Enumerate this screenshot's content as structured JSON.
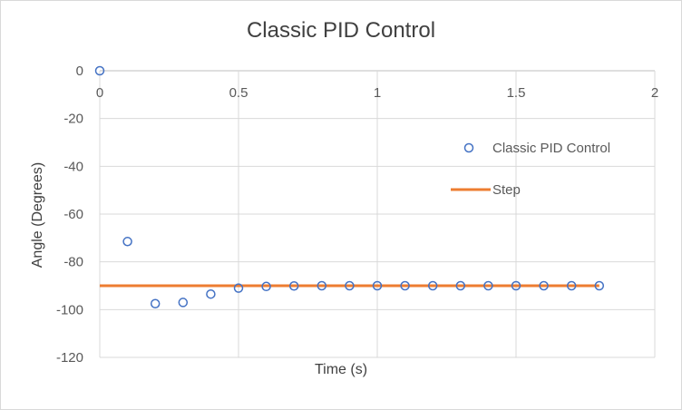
{
  "chart_data": {
    "type": "scatter",
    "title": "Classic PID Control",
    "xlabel": "Time (s)",
    "ylabel": "Angle (Degrees)",
    "xlim": [
      0,
      2
    ],
    "ylim": [
      -120,
      0
    ],
    "xticks": [
      0,
      0.5,
      1,
      1.5,
      2
    ],
    "xtick_labels": [
      "0",
      "0.5",
      "1",
      "1.5",
      "2"
    ],
    "yticks": [
      0,
      -20,
      -40,
      -60,
      -80,
      -100,
      -120
    ],
    "ytick_labels": [
      "0",
      "-20",
      "-40",
      "-60",
      "-80",
      "-100",
      "-120"
    ],
    "grid": true,
    "legend_position": "right",
    "series": [
      {
        "name": "Classic PID Control",
        "kind": "markers",
        "color": "#4472c4",
        "x": [
          0,
          0.1,
          0.2,
          0.3,
          0.4,
          0.5,
          0.6,
          0.7,
          0.8,
          0.9,
          1.0,
          1.1,
          1.2,
          1.3,
          1.4,
          1.5,
          1.6,
          1.7,
          1.8
        ],
        "y": [
          0,
          -71.5,
          -97.5,
          -97,
          -93.5,
          -91,
          -90.3,
          -90.1,
          -90,
          -90,
          -90,
          -90,
          -90,
          -90,
          -90,
          -90,
          -90,
          -90,
          -90
        ]
      },
      {
        "name": "Step",
        "kind": "line",
        "color": "#ed7d31",
        "x": [
          0,
          1.8
        ],
        "y": [
          -90,
          -90
        ]
      }
    ]
  }
}
